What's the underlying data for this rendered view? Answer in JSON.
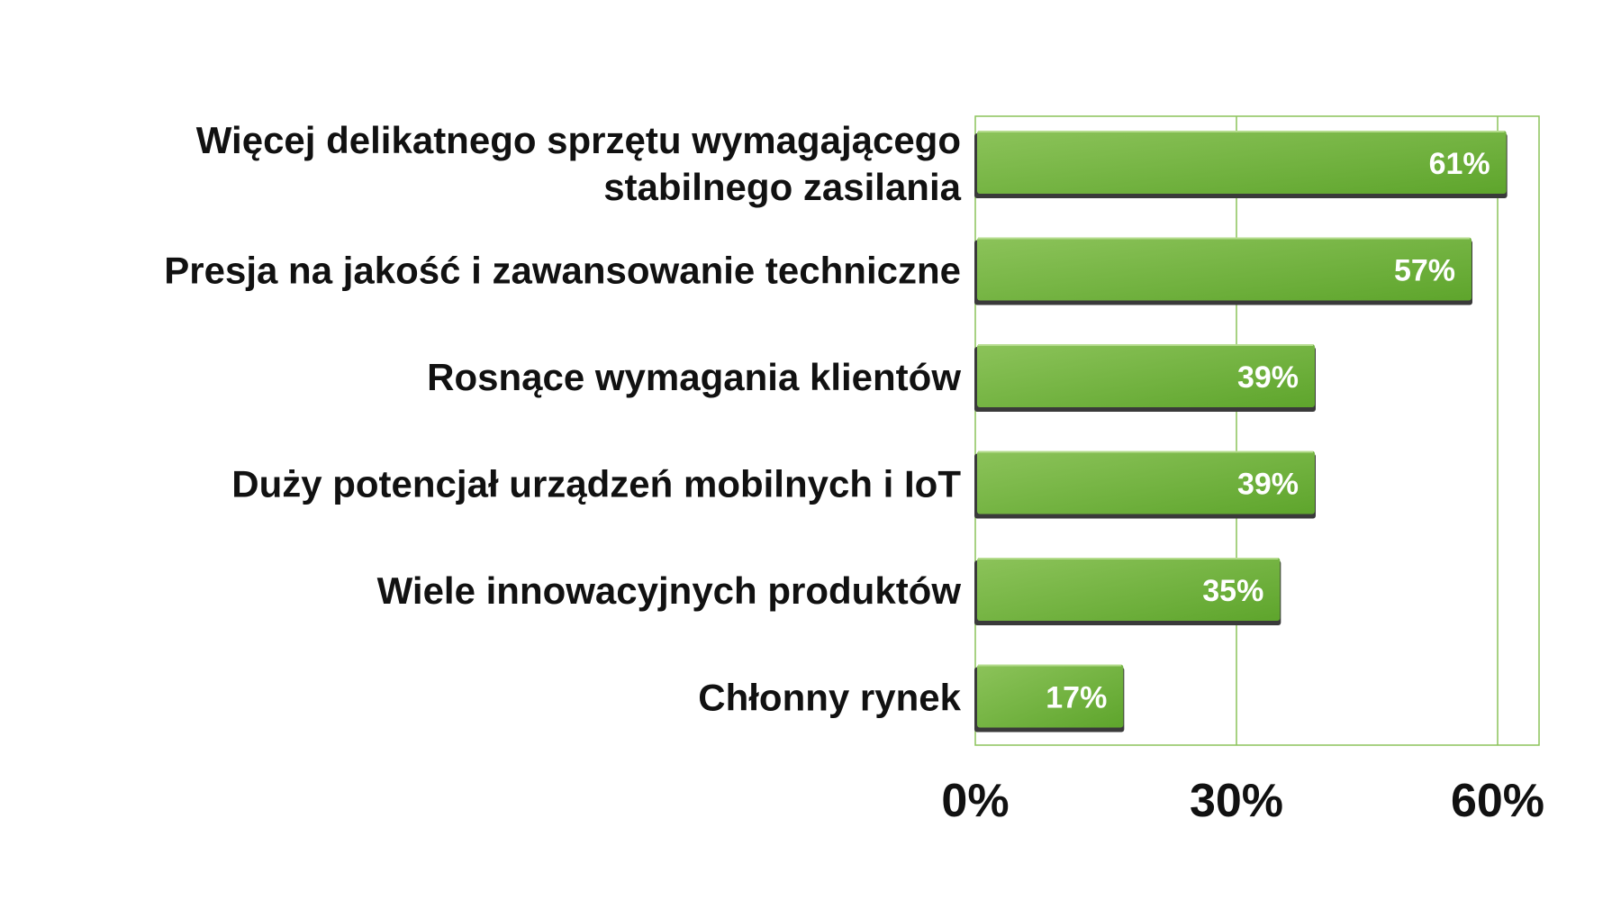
{
  "chart_data": {
    "type": "bar",
    "orientation": "horizontal",
    "categories": [
      [
        "Więcej delikatnego sprzętu wymagającego",
        "stabilnego zasilania"
      ],
      [
        "Presja na jakość i zawansowanie techniczne"
      ],
      [
        "Rosnące wymagania klientów"
      ],
      [
        "Duży potencjał urządzeń mobilnych i IoT"
      ],
      [
        "Wiele innowacyjnych produktów"
      ],
      [
        "Chłonny rynek"
      ]
    ],
    "values": [
      61,
      57,
      39,
      39,
      35,
      17
    ],
    "data_labels": [
      "61%",
      "57%",
      "39%",
      "39%",
      "35%",
      "17%"
    ],
    "xlim": [
      0,
      65
    ],
    "xticks": [
      0,
      30,
      60
    ],
    "xtick_labels": [
      "0%",
      "30%",
      "60%"
    ],
    "grid": true,
    "legend": false,
    "title": "",
    "xlabel": "",
    "ylabel": "",
    "colors": {
      "bar_light": "#8cc35a",
      "bar_dark": "#5ea52c",
      "bar_edge": "#3a3a3a",
      "grid": "#8cc35a",
      "data_label": "#ffffff"
    }
  }
}
